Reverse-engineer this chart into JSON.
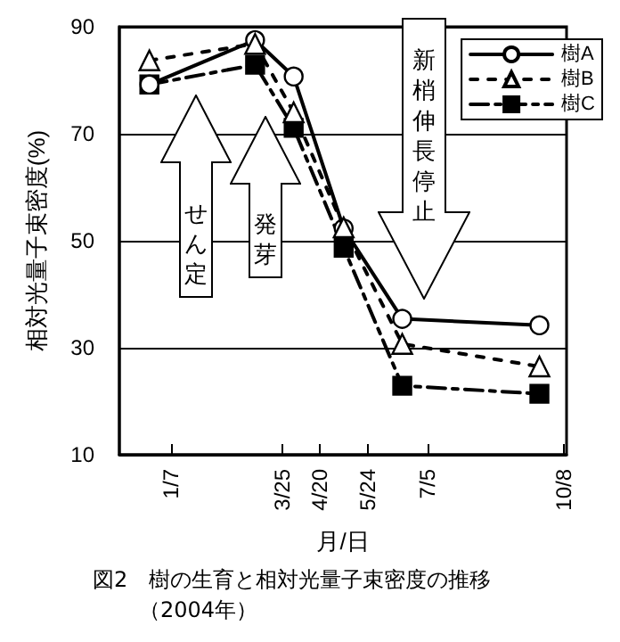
{
  "chart_data": {
    "type": "line",
    "title": "図2　樹の生育と相対光量子束密度の推移",
    "subtitle": "（2004年）",
    "xlabel": "月/日",
    "ylabel": "相対光量子束密度(%)",
    "annotations": [
      "せん定",
      "発芽",
      "新梢伸長停止"
    ],
    "x": [
      "2003-12-23",
      "2004-03-06",
      "2004-04-02",
      "2004-05-07",
      "2004-06-17",
      "2004-09-21"
    ],
    "series": [
      {
        "name": "樹A",
        "color": "#000000",
        "marker": "circle",
        "line_style": "solid",
        "values": [
          79.2,
          87.5,
          80.7,
          52.3,
          35.4,
          34.2
        ]
      },
      {
        "name": "樹B",
        "color": "#000000",
        "marker": "triangle",
        "line_style": "dotted",
        "values": [
          83.7,
          86.8,
          74.0,
          52.5,
          30.7,
          26.5
        ]
      },
      {
        "name": "樹C",
        "color": "#000000",
        "marker": "square",
        "line_style": "dashed",
        "values": [
          79.2,
          82.9,
          71.1,
          48.7,
          22.9,
          21.4
        ]
      }
    ],
    "xlim": [
      "2003-12-02",
      "2004-10-10"
    ],
    "xticks": [
      {
        "value": "2004-01-07",
        "label": "1/7"
      },
      {
        "value": "2004-03-25",
        "label": "3/25"
      },
      {
        "value": "2004-04-20",
        "label": "4/20"
      },
      {
        "value": "2004-05-24",
        "label": "5/24"
      },
      {
        "value": "2004-07-05",
        "label": "7/5"
      },
      {
        "value": "2004-10-08",
        "label": "10/8"
      }
    ],
    "ylim": [
      10,
      90
    ],
    "yticks": [
      10,
      30,
      50,
      70,
      90
    ],
    "grid": "y",
    "legend": "top right"
  }
}
